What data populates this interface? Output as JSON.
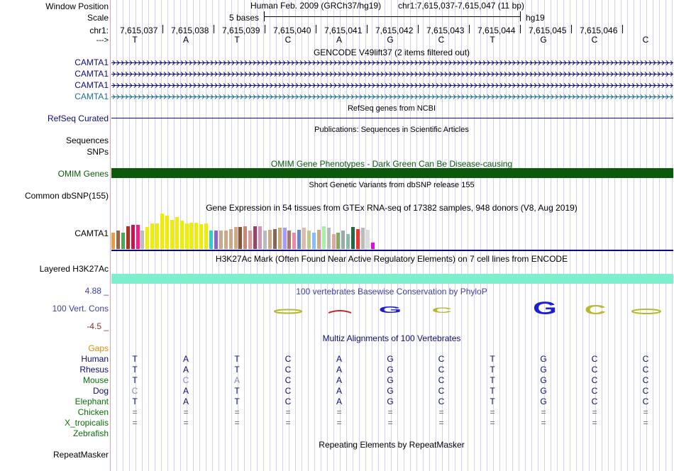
{
  "header": {
    "window_position_label": "Window Position",
    "scale_label": "Scale",
    "chrom_label": "chr1:",
    "direction_label": "--->",
    "assembly_title": "Human Feb. 2009 (GRCh37/hg19)",
    "position": "chr1:7,615,037-7,615,047 (11 bp)",
    "scale_text": "5 bases",
    "db": "hg19",
    "coordinates": [
      "7,615,037",
      "7,615,038",
      "7,615,039",
      "7,615,040",
      "7,615,041",
      "7,615,042",
      "7,615,043",
      "7,615,044",
      "7,615,045",
      "7,615,046"
    ],
    "bases": [
      "T",
      "A",
      "T",
      "C",
      "A",
      "G",
      "C",
      "T",
      "G",
      "C",
      "C"
    ]
  },
  "tracks": {
    "gencode": {
      "title": "GENCODE V49lift37 (2 items filtered out)",
      "items": [
        "CAMTA1",
        "CAMTA1",
        "CAMTA1",
        "CAMTA1"
      ],
      "colors": [
        "#0c0c78",
        "#0c0c78",
        "#0c0c78",
        "#1a6e96"
      ]
    },
    "refseq": {
      "label": "RefSeq Curated",
      "title": "RefSeq genes from NCBI"
    },
    "publications": {
      "label_line1": "Sequences",
      "label_line2": "SNPs",
      "title": "Publications: Sequences in Scientific Articles"
    },
    "omim": {
      "label": "OMIM Genes",
      "title": "OMIM Gene Phenotypes - Dark Green Can Be Disease-causing",
      "color": "#0a5a0a"
    },
    "dbsnp": {
      "label": "Common dbSNP(155)",
      "title": "Short Genetic Variants from dbSNP release 155"
    },
    "gtex": {
      "label": "CAMTA1",
      "title": "Gene Expression in 54 tissues from GTEx RNA-seq of 17382 samples, 948 donors (V8, Aug 2019)",
      "tissue_values": [
        0.45,
        0.5,
        0.45,
        0.62,
        0.66,
        0.66,
        0.5,
        0.6,
        0.7,
        0.7,
        0.98,
        0.92,
        0.8,
        0.88,
        0.78,
        0.7,
        0.72,
        0.72,
        0.68,
        0.7,
        0.5,
        0.5,
        0.5,
        0.5,
        0.55,
        0.6,
        0.6,
        0.62,
        0.5,
        0.62,
        0.62,
        0.5,
        0.52,
        0.55,
        0.58,
        0.58,
        0.5,
        0.45,
        0.52,
        0.58,
        0.5,
        0.45,
        0.52,
        0.62,
        0.58,
        0.42,
        0.45,
        0.5,
        0.42,
        0.6,
        0.55,
        0.58,
        0.52,
        0.18
      ],
      "tissue_colors": [
        "#ee9944",
        "#996644",
        "#44aa55",
        "#aa3322",
        "#cc1155",
        "#ee2288",
        "#bbbbbb",
        "#eeee00",
        "#eeee00",
        "#eeee00",
        "#eeee00",
        "#eeee00",
        "#eeee00",
        "#eeee00",
        "#eeee00",
        "#eeee00",
        "#eeee00",
        "#eeee00",
        "#eeee00",
        "#eeee00",
        "#33cccc",
        "#8866bb",
        "#ccaa88",
        "#ccaa88",
        "#ccaa88",
        "#ccaa88",
        "#885533",
        "#cc8877",
        "#dd9999",
        "#994466",
        "#cc99bb",
        "#bbbbbb",
        "#ccaa88",
        "#886655",
        "#ccaa77",
        "#aa99ff",
        "#aa7766",
        "#ee88aa",
        "#6688cc",
        "#ddbbaa",
        "#bbcc88",
        "#88bbff",
        "#ccaa88",
        "#aaeeaa",
        "#bbbbbb",
        "#ddaa99",
        "#88aa66",
        "#99aaaa",
        "#88bbaa",
        "#226644",
        "#ee3333",
        "#bbbbbb",
        "#dddddd",
        "#ee00ee"
      ]
    },
    "h3k27ac": {
      "label": "Layered H3K27Ac",
      "title": "H3K27Ac Mark (Often Found Near Active Regulatory Elements) on 7 cell lines from ENCODE",
      "color": "#7eefcc"
    },
    "phylop": {
      "label": "100 Vert. Cons",
      "max_label": "4.88 _",
      "min_label": "-4.5 _",
      "title": "100 vertebrates Basewise Conservation by PhyloP"
    },
    "multiz": {
      "title": "Multiz Alignments of 100 Vertebrates",
      "gaps_label": "Gaps",
      "species": [
        {
          "name": "Human",
          "color": "#0c0c78",
          "bases": [
            "T",
            "A",
            "T",
            "C",
            "A",
            "G",
            "C",
            "T",
            "G",
            "C",
            "C"
          ]
        },
        {
          "name": "Rhesus",
          "color": "#0c0c78",
          "bases": [
            "T",
            "A",
            "T",
            "C",
            "A",
            "G",
            "C",
            "T",
            "G",
            "C",
            "C"
          ]
        },
        {
          "name": "Mouse",
          "color": "#0a6e0a",
          "bases": [
            "T",
            "C",
            "A",
            "C",
            "A",
            "G",
            "C",
            "T",
            "G",
            "C",
            "C"
          ]
        },
        {
          "name": "Dog",
          "color": "#0c0c78",
          "bases": [
            "C",
            "A",
            "T",
            "C",
            "A",
            "G",
            "C",
            "T",
            "G",
            "C",
            "C"
          ]
        },
        {
          "name": "Elephant",
          "color": "#0a6e0a",
          "bases": [
            "T",
            "A",
            "T",
            "C",
            "A",
            "G",
            "C",
            "T",
            "G",
            "C",
            "C"
          ]
        },
        {
          "name": "Chicken",
          "color": "#0a6e0a",
          "bases": [
            "=",
            "=",
            "=",
            "=",
            "=",
            "=",
            "=",
            "=",
            "=",
            "=",
            "="
          ]
        },
        {
          "name": "X_tropicalis",
          "color": "#0a6e0a",
          "bases": [
            "=",
            "=",
            "=",
            "=",
            "=",
            "=",
            "=",
            "=",
            "=",
            "=",
            "="
          ]
        },
        {
          "name": "Zebrafish",
          "color": "#0a6e0a",
          "bases": [
            "",
            "",
            "",
            "",
            "",
            "",
            "",
            "",
            "",
            "",
            ""
          ]
        }
      ]
    },
    "repeatmasker": {
      "label": "RepeatMasker",
      "title": "Repeating Elements by RepeatMasker"
    }
  }
}
